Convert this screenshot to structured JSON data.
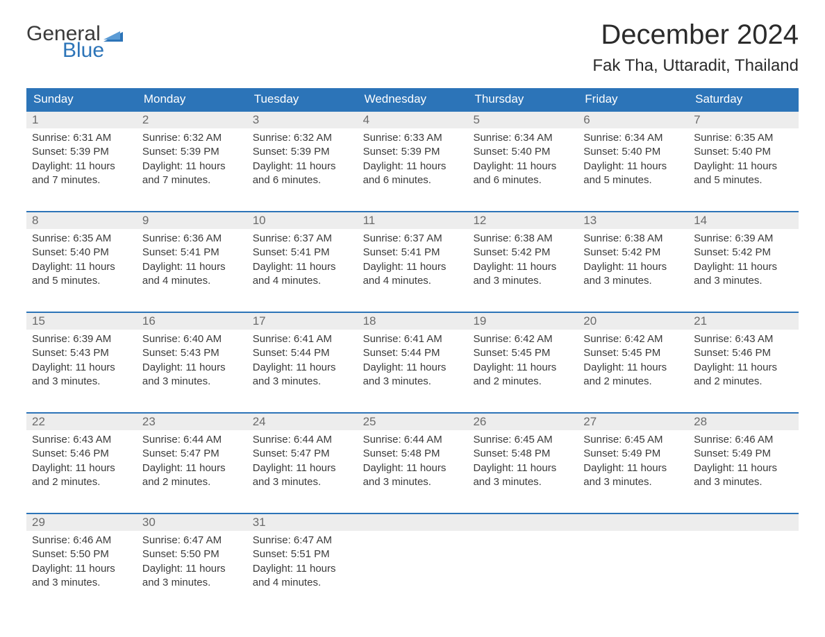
{
  "brand": {
    "word1": "General",
    "word2": "Blue",
    "accent_color": "#2c74b8"
  },
  "title": "December 2024",
  "location": "Fak Tha, Uttaradit, Thailand",
  "colors": {
    "header_bg": "#2c74b8",
    "header_text": "#ffffff",
    "daynum_bg": "#ededed",
    "daynum_text": "#6b6b6b",
    "body_text": "#3a3a3a",
    "week_border": "#2c74b8",
    "page_bg": "#ffffff"
  },
  "fonts": {
    "title_size_pt": 30,
    "location_size_pt": 18,
    "dow_size_pt": 13,
    "cell_size_pt": 11
  },
  "days_of_week": [
    "Sunday",
    "Monday",
    "Tuesday",
    "Wednesday",
    "Thursday",
    "Friday",
    "Saturday"
  ],
  "labels": {
    "sunrise": "Sunrise",
    "sunset": "Sunset",
    "daylight": "Daylight"
  },
  "weeks": [
    [
      {
        "n": "1",
        "sr": "6:31 AM",
        "ss": "5:39 PM",
        "dl": "11 hours and 7 minutes."
      },
      {
        "n": "2",
        "sr": "6:32 AM",
        "ss": "5:39 PM",
        "dl": "11 hours and 7 minutes."
      },
      {
        "n": "3",
        "sr": "6:32 AM",
        "ss": "5:39 PM",
        "dl": "11 hours and 6 minutes."
      },
      {
        "n": "4",
        "sr": "6:33 AM",
        "ss": "5:39 PM",
        "dl": "11 hours and 6 minutes."
      },
      {
        "n": "5",
        "sr": "6:34 AM",
        "ss": "5:40 PM",
        "dl": "11 hours and 6 minutes."
      },
      {
        "n": "6",
        "sr": "6:34 AM",
        "ss": "5:40 PM",
        "dl": "11 hours and 5 minutes."
      },
      {
        "n": "7",
        "sr": "6:35 AM",
        "ss": "5:40 PM",
        "dl": "11 hours and 5 minutes."
      }
    ],
    [
      {
        "n": "8",
        "sr": "6:35 AM",
        "ss": "5:40 PM",
        "dl": "11 hours and 5 minutes."
      },
      {
        "n": "9",
        "sr": "6:36 AM",
        "ss": "5:41 PM",
        "dl": "11 hours and 4 minutes."
      },
      {
        "n": "10",
        "sr": "6:37 AM",
        "ss": "5:41 PM",
        "dl": "11 hours and 4 minutes."
      },
      {
        "n": "11",
        "sr": "6:37 AM",
        "ss": "5:41 PM",
        "dl": "11 hours and 4 minutes."
      },
      {
        "n": "12",
        "sr": "6:38 AM",
        "ss": "5:42 PM",
        "dl": "11 hours and 3 minutes."
      },
      {
        "n": "13",
        "sr": "6:38 AM",
        "ss": "5:42 PM",
        "dl": "11 hours and 3 minutes."
      },
      {
        "n": "14",
        "sr": "6:39 AM",
        "ss": "5:42 PM",
        "dl": "11 hours and 3 minutes."
      }
    ],
    [
      {
        "n": "15",
        "sr": "6:39 AM",
        "ss": "5:43 PM",
        "dl": "11 hours and 3 minutes."
      },
      {
        "n": "16",
        "sr": "6:40 AM",
        "ss": "5:43 PM",
        "dl": "11 hours and 3 minutes."
      },
      {
        "n": "17",
        "sr": "6:41 AM",
        "ss": "5:44 PM",
        "dl": "11 hours and 3 minutes."
      },
      {
        "n": "18",
        "sr": "6:41 AM",
        "ss": "5:44 PM",
        "dl": "11 hours and 3 minutes."
      },
      {
        "n": "19",
        "sr": "6:42 AM",
        "ss": "5:45 PM",
        "dl": "11 hours and 2 minutes."
      },
      {
        "n": "20",
        "sr": "6:42 AM",
        "ss": "5:45 PM",
        "dl": "11 hours and 2 minutes."
      },
      {
        "n": "21",
        "sr": "6:43 AM",
        "ss": "5:46 PM",
        "dl": "11 hours and 2 minutes."
      }
    ],
    [
      {
        "n": "22",
        "sr": "6:43 AM",
        "ss": "5:46 PM",
        "dl": "11 hours and 2 minutes."
      },
      {
        "n": "23",
        "sr": "6:44 AM",
        "ss": "5:47 PM",
        "dl": "11 hours and 2 minutes."
      },
      {
        "n": "24",
        "sr": "6:44 AM",
        "ss": "5:47 PM",
        "dl": "11 hours and 3 minutes."
      },
      {
        "n": "25",
        "sr": "6:44 AM",
        "ss": "5:48 PM",
        "dl": "11 hours and 3 minutes."
      },
      {
        "n": "26",
        "sr": "6:45 AM",
        "ss": "5:48 PM",
        "dl": "11 hours and 3 minutes."
      },
      {
        "n": "27",
        "sr": "6:45 AM",
        "ss": "5:49 PM",
        "dl": "11 hours and 3 minutes."
      },
      {
        "n": "28",
        "sr": "6:46 AM",
        "ss": "5:49 PM",
        "dl": "11 hours and 3 minutes."
      }
    ],
    [
      {
        "n": "29",
        "sr": "6:46 AM",
        "ss": "5:50 PM",
        "dl": "11 hours and 3 minutes."
      },
      {
        "n": "30",
        "sr": "6:47 AM",
        "ss": "5:50 PM",
        "dl": "11 hours and 3 minutes."
      },
      {
        "n": "31",
        "sr": "6:47 AM",
        "ss": "5:51 PM",
        "dl": "11 hours and 4 minutes."
      },
      null,
      null,
      null,
      null
    ]
  ]
}
